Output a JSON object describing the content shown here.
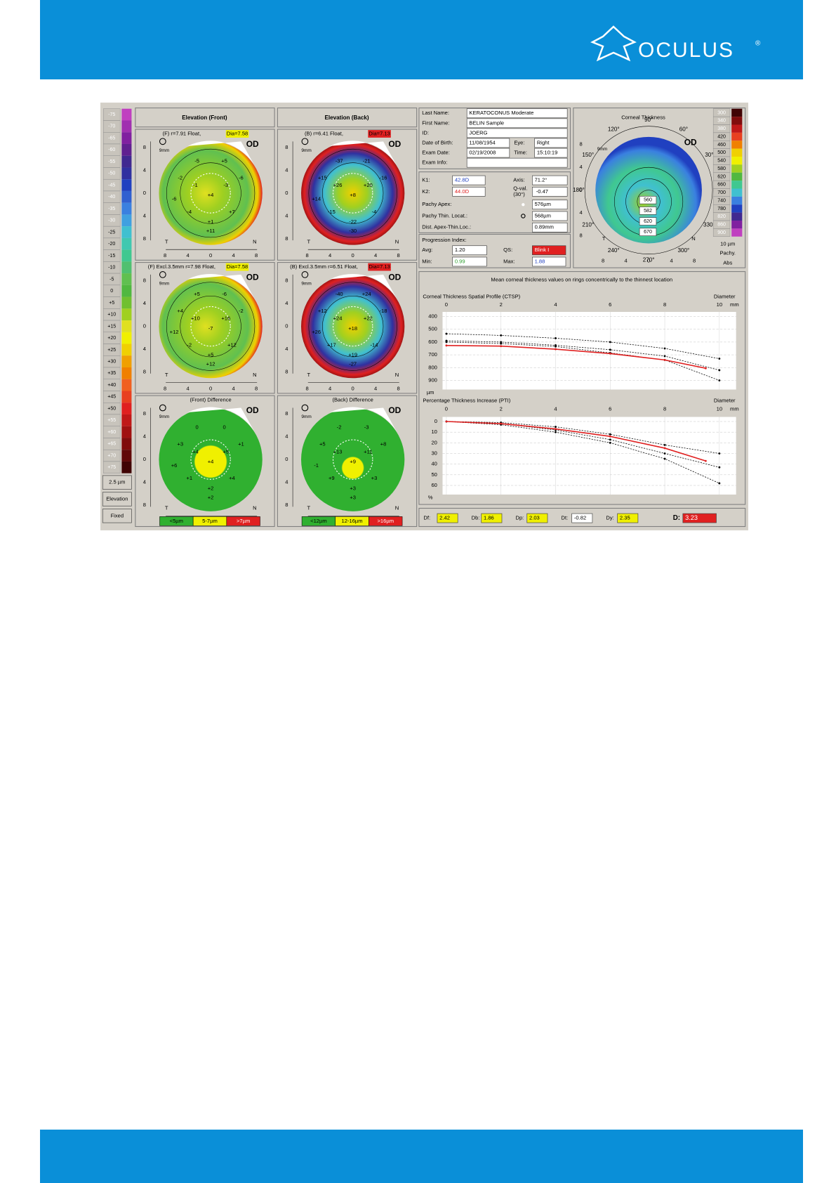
{
  "header": {
    "brand": "OCULUS",
    "reg": "®"
  },
  "scale": {
    "items": [
      {
        "label": "-75",
        "color": "#c040c0"
      },
      {
        "label": "-70",
        "color": "#a030b0"
      },
      {
        "label": "-65",
        "color": "#8020a0"
      },
      {
        "label": "-60",
        "color": "#602090"
      },
      {
        "label": "-55",
        "color": "#402890"
      },
      {
        "label": "-50",
        "color": "#3030a0"
      },
      {
        "label": "-45",
        "color": "#2040c0"
      },
      {
        "label": "-40",
        "color": "#3060d0"
      },
      {
        "label": "-35",
        "color": "#3a80e0"
      },
      {
        "label": "-30",
        "color": "#40a0e0"
      },
      {
        "label": "-25",
        "color": "#40c0d0"
      },
      {
        "label": "-20",
        "color": "#40c8b0"
      },
      {
        "label": "-15",
        "color": "#40c890"
      },
      {
        "label": "-10",
        "color": "#50c070"
      },
      {
        "label": "-5",
        "color": "#60c050"
      },
      {
        "label": "0",
        "color": "#50b840"
      },
      {
        "label": "+5",
        "color": "#70c030"
      },
      {
        "label": "+10",
        "color": "#a0d020"
      },
      {
        "label": "+15",
        "color": "#e0e020"
      },
      {
        "label": "+20",
        "color": "#f0f000"
      },
      {
        "label": "+25",
        "color": "#f0d000"
      },
      {
        "label": "+30",
        "color": "#f0a000"
      },
      {
        "label": "+35",
        "color": "#f08000"
      },
      {
        "label": "+40",
        "color": "#f06020"
      },
      {
        "label": "+45",
        "color": "#e84020"
      },
      {
        "label": "+50",
        "color": "#e02020"
      },
      {
        "label": "+55",
        "color": "#c01818"
      },
      {
        "label": "+60",
        "color": "#a01010"
      },
      {
        "label": "+65",
        "color": "#800c0c"
      },
      {
        "label": "+70",
        "color": "#600808"
      },
      {
        "label": "+75",
        "color": "#400404"
      }
    ],
    "unit": "2.5 µm",
    "mode": "Elevation",
    "fixed": "Fixed"
  },
  "columns": [
    "Elevation (Front)",
    "Elevation (Back)"
  ],
  "map_axis": {
    "ticks": [
      "8",
      "4",
      "0",
      "4",
      "8"
    ],
    "left": "T",
    "right": "N",
    "eye": "OD",
    "zoom": "9mm"
  },
  "maps": [
    {
      "title": "(F)  r=7.91 Float,",
      "dia": "Dia=7.58",
      "dia_color": "#f0f000",
      "numbers": [
        "-5",
        "+5",
        "-2",
        "-6",
        "-1",
        "-3",
        "-6",
        "+4",
        "-4",
        "+7",
        "+1",
        "+11"
      ]
    },
    {
      "title": "(B)  r=6.41 Float,",
      "dia": "Dia=7.13",
      "dia_color": "#e02020",
      "numbers": [
        "-37",
        "-21",
        "+15",
        "-16",
        "+26",
        "+20",
        "+14",
        "+8",
        "-15",
        "-4",
        "-22",
        "-30"
      ]
    },
    {
      "title": "(F) Excl.3.5mm  r=7.98 Float,",
      "dia": "Dia=7.58",
      "dia_color": "#f0f000",
      "numbers": [
        "+5",
        "-6",
        "+4",
        "-2",
        "+10",
        "+16",
        "+12",
        "-7",
        "-2",
        "+12",
        "+5",
        "+12"
      ]
    },
    {
      "title": "(B) Excl.3.5mm  r=6.51 Float,",
      "dia": "Dia=7.13",
      "dia_color": "#e02020",
      "numbers": [
        "-40",
        "+24",
        "+12",
        "-18",
        "+24",
        "+22",
        "+26",
        "+18",
        "+17",
        "-14",
        "+19",
        "-27"
      ]
    },
    {
      "title": "(Front) Difference",
      "numbers": [
        "0",
        "0",
        "+3",
        "+1",
        "+4",
        "+5",
        "+6",
        "+4",
        "+1",
        "+4",
        "+2",
        "+2"
      ],
      "legend": [
        {
          "label": "<5µm",
          "color": "#30b030"
        },
        {
          "label": "5-7µm",
          "color": "#f0f000"
        },
        {
          "label": ">7µm",
          "color": "#e02020"
        }
      ]
    },
    {
      "title": "(Back) Difference",
      "numbers": [
        "-2",
        "-3",
        "+5",
        "+8",
        "+13",
        "+11",
        "-1",
        "+9",
        "+9",
        "+3",
        "+3",
        "+3"
      ],
      "legend": [
        {
          "label": "<12µm",
          "color": "#30b030"
        },
        {
          "label": "12-16µm",
          "color": "#f0f000"
        },
        {
          "label": ">16µm",
          "color": "#e02020"
        }
      ]
    }
  ],
  "info": [
    {
      "label": "Last Name:",
      "value": "KERATOCONUS Moderate"
    },
    {
      "label": "First Name:",
      "value": "BELIN Sample"
    },
    {
      "label": "ID:",
      "value": "JOERG"
    },
    {
      "label": "Date of Birth:",
      "value": "11/08/1954",
      "label2": "Eye:",
      "value2": "Right"
    },
    {
      "label": "Exam Date:",
      "value": "02/19/2008",
      "label2": "Time:",
      "value2": "15:10:19"
    },
    {
      "label": "Exam Info:"
    }
  ],
  "kvals": {
    "k1_label": "K1:",
    "k1": "42.8D",
    "axis_label": "Axis:",
    "axis": "71.2°",
    "k2_label": "K2:",
    "k2": "44.0D",
    "q_label": "Q-val.",
    "q_label2": "(30°)",
    "q": "-0.47"
  },
  "pachy": [
    {
      "label": "Pachy Apex:",
      "value": "576µm"
    },
    {
      "label": "Pachy Thin. Locat.:",
      "value": "568µm"
    },
    {
      "label": "Dist. Apex-Thin.Loc.:",
      "value": "0.89mm"
    }
  ],
  "progression": {
    "title": "Progression Index:",
    "avg_label": "Avg:",
    "avg": "1.20",
    "qs_label": "QS:",
    "qs": "Blink I",
    "min_label": "Min:",
    "min": "0.99",
    "max_label": "Max:",
    "max": "1.88"
  },
  "thickness": {
    "title": "Corneal Thickness",
    "angles": [
      "90°",
      "120°",
      "150°",
      "180°",
      "210°",
      "240°",
      "270°",
      "300°",
      "330°",
      "0°",
      "30°",
      "60°"
    ],
    "numbers": [
      "560",
      "582",
      "620",
      "670"
    ],
    "scale": [
      {
        "label": "300",
        "color": "#400404"
      },
      {
        "label": "340",
        "color": "#800c0c"
      },
      {
        "label": "380",
        "color": "#c01818"
      },
      {
        "label": "420",
        "color": "#e84020"
      },
      {
        "label": "460",
        "color": "#f08000"
      },
      {
        "label": "500",
        "color": "#f0d000"
      },
      {
        "label": "540",
        "color": "#f0f000"
      },
      {
        "label": "580",
        "color": "#a0d020"
      },
      {
        "label": "620",
        "color": "#50b840"
      },
      {
        "label": "660",
        "color": "#40c890"
      },
      {
        "label": "700",
        "color": "#40c0d0"
      },
      {
        "label": "740",
        "color": "#3a80e0"
      },
      {
        "label": "780",
        "color": "#2040c0"
      },
      {
        "label": "820",
        "color": "#402890"
      },
      {
        "label": "860",
        "color": "#8020a0"
      },
      {
        "label": "900",
        "color": "#c040c0"
      }
    ],
    "unit": "10 µm",
    "mode": "Pachy.",
    "fixed": "Abs"
  },
  "charts_header": "Mean corneal thickness values on rings concentrically to the thinnest location",
  "charts": [
    {
      "type": "line",
      "title": "Corneal Thickness Spatial Profile (CTSP)",
      "x_label": "Diameter",
      "x_unit": "mm",
      "y_unit": "µm",
      "xlim": [
        0,
        10
      ],
      "xticks": [
        0,
        2,
        4,
        6,
        8,
        10
      ],
      "ylim": [
        400,
        900
      ],
      "yticks": [
        400,
        500,
        600,
        700,
        800,
        900
      ],
      "reversed": true,
      "series": [
        {
          "color": "#000000",
          "dashed": true,
          "x": [
            0,
            2,
            4,
            6,
            8,
            10
          ],
          "values": [
            535,
            548,
            570,
            600,
            650,
            730
          ]
        },
        {
          "color": "#000000",
          "dashed": true,
          "x": [
            0,
            2,
            4,
            6,
            8,
            10
          ],
          "values": [
            590,
            600,
            625,
            660,
            710,
            820
          ]
        },
        {
          "color": "#000000",
          "dashed": true,
          "x": [
            0,
            2,
            4,
            6,
            8,
            10
          ],
          "values": [
            600,
            612,
            635,
            685,
            740,
            900
          ]
        },
        {
          "color": "#e02020",
          "dashed": false,
          "x": [
            0,
            2,
            4,
            6,
            8,
            9.5
          ],
          "values": [
            627,
            632,
            656,
            690,
            740,
            805
          ]
        }
      ]
    },
    {
      "type": "line",
      "title": "Percentage Thickness Increase (PTI)",
      "x_label": "Diameter",
      "x_unit": "mm",
      "y_unit": "%",
      "xlim": [
        0,
        10
      ],
      "xticks": [
        0,
        2,
        4,
        6,
        8,
        10
      ],
      "ylim": [
        0,
        60
      ],
      "yticks": [
        0,
        10,
        20,
        30,
        40,
        50,
        60
      ],
      "reversed": true,
      "series": [
        {
          "color": "#000000",
          "dashed": true,
          "x": [
            0,
            2,
            4,
            6,
            8,
            10
          ],
          "values": [
            0,
            1,
            5,
            12,
            22,
            30
          ]
        },
        {
          "color": "#000000",
          "dashed": true,
          "x": [
            0,
            2,
            4,
            6,
            8,
            10
          ],
          "values": [
            0,
            2,
            8,
            17,
            30,
            43
          ]
        },
        {
          "color": "#000000",
          "dashed": true,
          "x": [
            0,
            2,
            4,
            6,
            8,
            10
          ],
          "values": [
            0,
            3,
            10,
            20,
            35,
            58
          ]
        },
        {
          "color": "#e02020",
          "dashed": false,
          "x": [
            0,
            2,
            4,
            6,
            8,
            9.5
          ],
          "values": [
            0,
            2,
            7,
            14,
            25,
            37
          ]
        }
      ]
    }
  ],
  "indices": [
    {
      "label": "Df:",
      "value": "2.42",
      "color": "#f0f000"
    },
    {
      "label": "Db:",
      "value": "1.86",
      "color": "#f0f000"
    },
    {
      "label": "Dp:",
      "value": "2.03",
      "color": "#f0f000"
    },
    {
      "label": "Dt:",
      "value": "-0.82",
      "color": "#ffffff"
    },
    {
      "label": "Dy:",
      "value": "2.35",
      "color": "#f0f000"
    },
    {
      "label": "D:",
      "value": "3.23",
      "color": "#e02020"
    }
  ]
}
